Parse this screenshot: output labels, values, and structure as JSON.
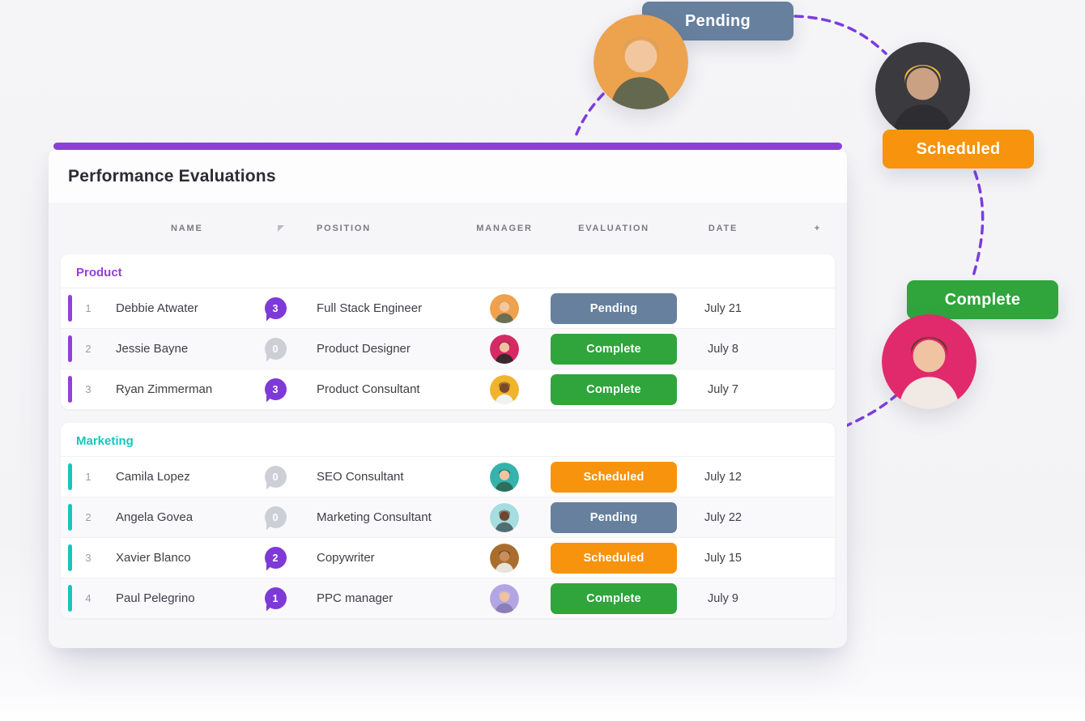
{
  "card": {
    "title": "Performance Evaluations",
    "accent_color": "#8c3fd9"
  },
  "table": {
    "headers": {
      "name": "NAME",
      "comments_icon": "speech-bubble-icon",
      "position": "POSITION",
      "manager": "MANAGER",
      "evaluation": "EVALUATION",
      "date": "DATE",
      "add": "+"
    },
    "comment_bubble_colors": {
      "active": "#7e3ad6",
      "zero": "#ccd0d6"
    },
    "status_colors": {
      "Pending": "#66809e",
      "Scheduled": "#f7930d",
      "Complete": "#2fa53c"
    },
    "groups": [
      {
        "name": "Product",
        "color": "#9440d8",
        "rows": [
          {
            "num": "1",
            "name": "Debbie Atwater",
            "comments": "3",
            "position": "Full Stack Engineer",
            "status": "Pending",
            "date": "July 21",
            "avatar": {
              "bg": "#efa14d",
              "skin": "#f2c7a0",
              "hair": "#c59a62",
              "shirt": "#6b6f55"
            }
          },
          {
            "num": "2",
            "name": "Jessie Bayne",
            "comments": "0",
            "position": "Product Designer",
            "status": "Complete",
            "date": "July 8",
            "avatar": {
              "bg": "#d62a63",
              "skin": "#f0bfa0",
              "hair": "#4a3028",
              "shirt": "#3c2630"
            }
          },
          {
            "num": "3",
            "name": "Ryan Zimmerman",
            "comments": "3",
            "position": "Product Consultant",
            "status": "Complete",
            "date": "July 7",
            "avatar": {
              "bg": "#f0b32c",
              "skin": "#7a4a2a",
              "hair": "#241d18",
              "shirt": "#f2f2f2"
            }
          }
        ]
      },
      {
        "name": "Marketing",
        "color": "#14c7bd",
        "rows": [
          {
            "num": "1",
            "name": "Camila Lopez",
            "comments": "0",
            "position": "SEO Consultant",
            "status": "Scheduled",
            "date": "July 12",
            "avatar": {
              "bg": "#35b3ac",
              "skin": "#f2c3a0",
              "hair": "#3e2b26",
              "shirt": "#2e6e5e"
            }
          },
          {
            "num": "2",
            "name": "Angela Govea",
            "comments": "0",
            "position": "Marketing Consultant",
            "status": "Pending",
            "date": "July 22",
            "avatar": {
              "bg": "#a6dde0",
              "skin": "#6f4630",
              "hair": "#2a211d",
              "shirt": "#4f6f72"
            }
          },
          {
            "num": "3",
            "name": "Xavier Blanco",
            "comments": "2",
            "position": "Copywriter",
            "status": "Scheduled",
            "date": "July 15",
            "avatar": {
              "bg": "#a96e2e",
              "skin": "#c98d5e",
              "hair": "#3a2a22",
              "shirt": "#e8e4da"
            }
          },
          {
            "num": "4",
            "name": "Paul Pelegrino",
            "comments": "1",
            "position": "PPC manager",
            "status": "Complete",
            "date": "July 9",
            "avatar": {
              "bg": "#b3a5e3",
              "skin": "#eec3a2",
              "hair": "#d8d3cf",
              "shirt": "#8a7fb8"
            }
          }
        ]
      }
    ]
  },
  "floating": {
    "pending": {
      "label": "Pending",
      "color": "#66809e",
      "avatar": {
        "bg": "#eda24e",
        "skin": "#f2c7a0",
        "hair": "#cfa368",
        "shirt": "#63684f"
      }
    },
    "scheduled": {
      "label": "Scheduled",
      "color": "#f7930d",
      "avatar": {
        "bg": "#3b3a3e",
        "skin": "#caa283",
        "hair": "#f1b33c",
        "shirt": "#2e2d31"
      }
    },
    "complete": {
      "label": "Complete",
      "color": "#2fa53c",
      "avatar": {
        "bg": "#e02a6b",
        "skin": "#f0c4a2",
        "hair": "#5e3a2c",
        "shirt": "#f1e9e4"
      }
    }
  },
  "connector_color": "#7c3ce0"
}
